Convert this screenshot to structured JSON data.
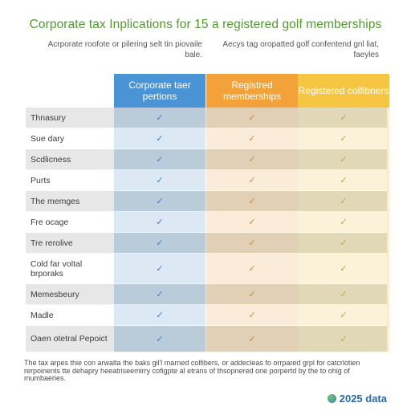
{
  "title": "Corporate tax Inplications for 15 a registered golf memberships",
  "subtitle_left": "Acrporate roofote or pilering selt tin piovaile bale.",
  "subtitle_right": "Aecys tag oropatted golf confentend gnl liat, faeyles",
  "columns": [
    {
      "label": "Corporate taer pertions",
      "color": "#4a93d4",
      "strip": "#c9def0",
      "check_color": "#3d7fc0"
    },
    {
      "label": "Registred memberships",
      "color": "#f3a23a",
      "strip": "#f8e2c4",
      "check_color": "#d98a28"
    },
    {
      "label": "Registered colfibners",
      "color": "#f6c542",
      "strip": "#f8edc6",
      "check_color": "#cfa128"
    }
  ],
  "rows": [
    {
      "label": "Thnasury"
    },
    {
      "label": "Sue dary"
    },
    {
      "label": "Scdlicness"
    },
    {
      "label": "Purts"
    },
    {
      "label": "The memges"
    },
    {
      "label": "Fre ocage"
    },
    {
      "label": "Tre rerolive"
    },
    {
      "label": "Cold far voltal brporaks"
    },
    {
      "label": "Memesbeury"
    },
    {
      "label": "Madle"
    },
    {
      "label": "Oaen otetral Pepoict"
    }
  ],
  "check_mark": "✓",
  "footnote": "The tax arpes thie con arwalta the baks gil'l marned colfibers, or addecleas fo orrpared grpl for catcrlotien rerpoinents tte dehapry heeatriseemirry cofigpte al etrans of thsopnered one porpertd by the to ohig of mumbaeries.",
  "badge": "2025 data"
}
